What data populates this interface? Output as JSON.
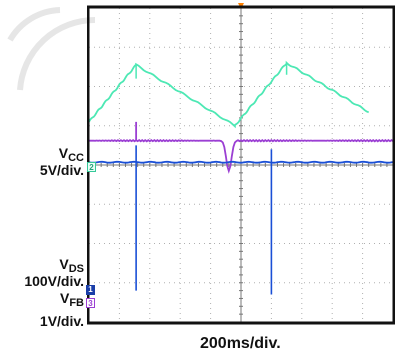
{
  "labels": {
    "vcc_name": "V",
    "vcc_sub": "CC",
    "vcc_scale": "5V/div.",
    "vds_name": "V",
    "vds_sub": "DS",
    "vds_scale": "100V/div.",
    "vfb_name": "V",
    "vfb_sub": "FB",
    "vfb_scale": "1V/div.",
    "timebase": "200ms/div."
  },
  "markers": {
    "ch1": "1",
    "ch2": "2",
    "ch3": "3"
  },
  "colors": {
    "vcc": "#4de8b4",
    "vfb": "#9b3fd3",
    "vds": "#1a4fd6",
    "grid": "#b0b0b0",
    "frame": "#111111",
    "trigger": "#ff8000"
  },
  "chart_data": {
    "type": "line",
    "time_per_div_ms": 200,
    "divisions": {
      "x": 10,
      "y": 8
    },
    "series": [
      {
        "name": "VCC",
        "scale": "5V/div.",
        "points_div": [
          [
            0,
            5.1
          ],
          [
            1.55,
            6.55
          ],
          [
            4.8,
            5.0
          ],
          [
            6.5,
            6.6
          ],
          [
            9.2,
            5.35
          ]
        ]
      },
      {
        "name": "VFB",
        "scale": "1V/div.",
        "baseline_div": 4.62,
        "dip_div": {
          "t": 4.5,
          "level": 3.85
        },
        "spike_div": {
          "t": 1.55,
          "level": 5.1
        }
      },
      {
        "name": "VDS",
        "scale": "100V/div.",
        "baseline_div": 4.07,
        "spikes_div": [
          {
            "t": 1.55,
            "top": 4.5,
            "bottom": 0.8
          },
          {
            "t": 6.0,
            "top": 4.4,
            "bottom": 0.7
          }
        ]
      }
    ]
  }
}
